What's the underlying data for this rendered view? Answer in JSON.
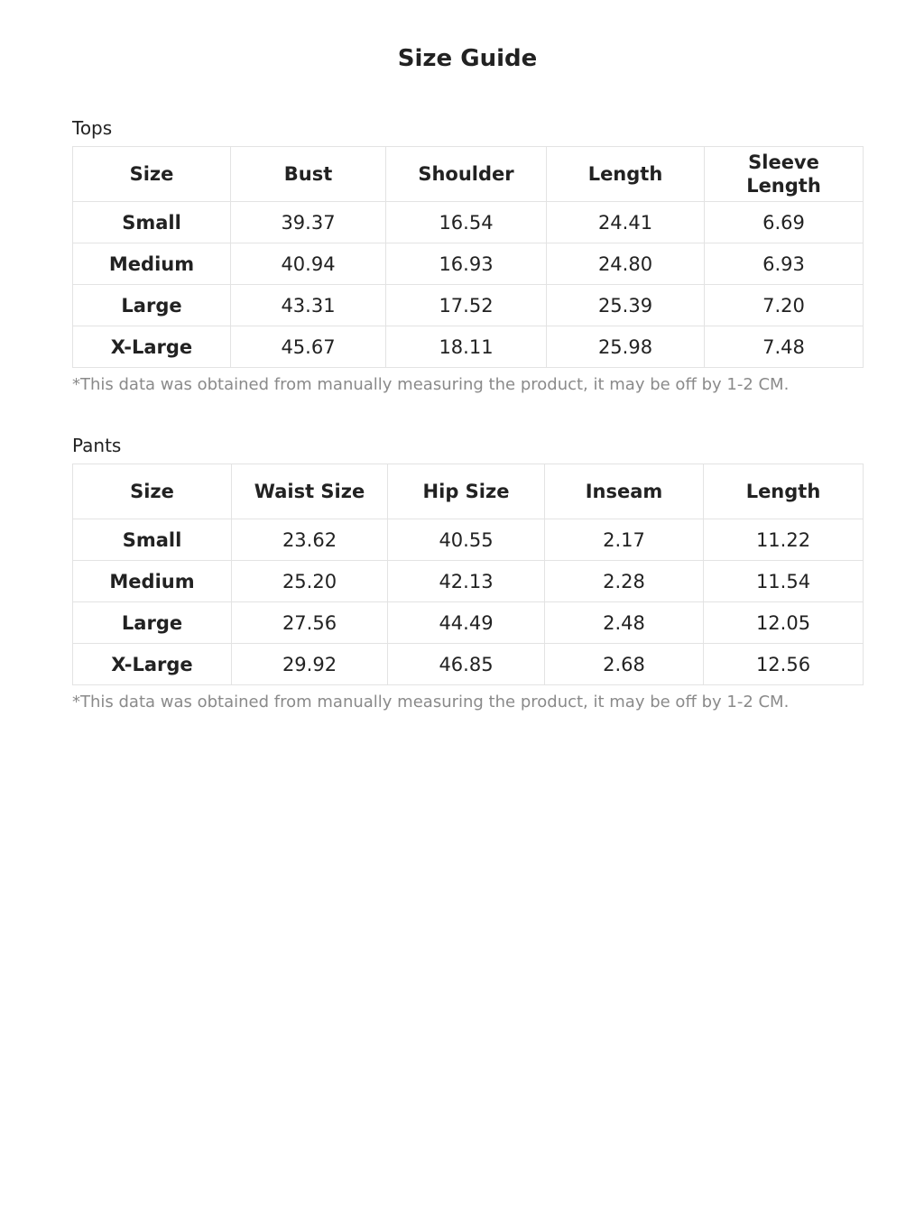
{
  "title": "Size Guide",
  "tops": {
    "label": "Tops",
    "headers": [
      "Size",
      "Bust",
      "Shoulder",
      "Length",
      "Sleeve Length"
    ],
    "rows": [
      [
        "Small",
        "39.37",
        "16.54",
        "24.41",
        "6.69"
      ],
      [
        "Medium",
        "40.94",
        "16.93",
        "24.80",
        "6.93"
      ],
      [
        "Large",
        "43.31",
        "17.52",
        "25.39",
        "7.20"
      ],
      [
        "X-Large",
        "45.67",
        "18.11",
        "25.98",
        "7.48"
      ]
    ],
    "note": "*This data was obtained from manually measuring the product, it may be off by 1-2 CM."
  },
  "pants": {
    "label": "Pants",
    "headers": [
      "Size",
      "Waist Size",
      "Hip Size",
      "Inseam",
      "Length"
    ],
    "rows": [
      [
        "Small",
        "23.62",
        "40.55",
        "2.17",
        "11.22"
      ],
      [
        "Medium",
        "25.20",
        "42.13",
        "2.28",
        "11.54"
      ],
      [
        "Large",
        "27.56",
        "44.49",
        "2.48",
        "12.05"
      ],
      [
        "X-Large",
        "29.92",
        "46.85",
        "2.68",
        "12.56"
      ]
    ],
    "note": "*This data was obtained from manually measuring the product, it may be off by 1-2 CM."
  }
}
